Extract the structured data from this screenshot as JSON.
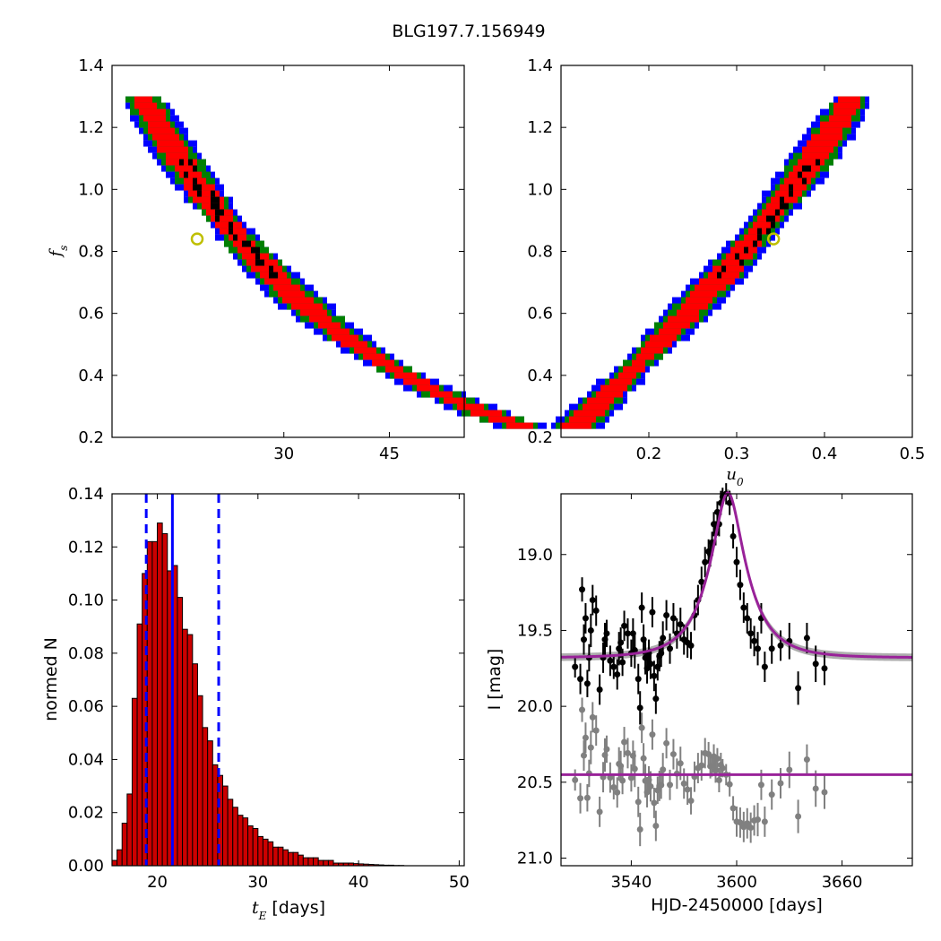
{
  "figure": {
    "title": "BLG197.7.156949"
  },
  "colors": {
    "blue": "#0000ff",
    "green": "#008000",
    "red": "#ff0000",
    "black": "#000000",
    "marker_edge": "#bfbf00",
    "model": "#992299",
    "model_band": "#999999",
    "gray_points": "#808080",
    "hist_bar": "#cc0000"
  },
  "chart_data": [
    {
      "id": "fs_vs_tE",
      "type": "heatmap",
      "description_levels": [
        "1-sigma (black)",
        "2-sigma (red)",
        "3-sigma (green)",
        "outer (blue)"
      ],
      "ylabel": "f_s",
      "xlabel": "",
      "x_scale": "log",
      "xlim": [
        15.5,
        60
      ],
      "ylim": [
        0.2,
        1.4
      ],
      "xticks": [
        30,
        45
      ],
      "yticks": [
        0.2,
        0.4,
        0.6,
        0.8,
        1.0,
        1.2,
        1.4
      ],
      "ytick_labels": [
        "0.2",
        "0.4",
        "0.6",
        "0.8",
        "1.0",
        "1.2",
        "1.4"
      ],
      "best_fit": {
        "tE": 21.5,
        "fs": 0.84
      },
      "curve": {
        "model": "tE = 22.0 * fs^-0.87",
        "fs_range": [
          0.24,
          1.3
        ]
      }
    },
    {
      "id": "fs_vs_u0",
      "type": "heatmap",
      "xlabel": "u_0",
      "ylabel": "",
      "xlim": [
        0.1,
        0.5
      ],
      "ylim": [
        0.2,
        1.4
      ],
      "xticks": [
        0.2,
        0.3,
        0.4,
        0.5
      ],
      "xtick_labels": [
        "0.2",
        "0.3",
        "0.4",
        "0.5"
      ],
      "yticks": [
        0.2,
        0.4,
        0.6,
        0.8,
        1.0,
        1.2,
        1.4
      ],
      "ytick_labels": [
        "0.2",
        "0.4",
        "0.6",
        "0.8",
        "1.0",
        "1.2",
        "1.4"
      ],
      "best_fit": {
        "u0": 0.342,
        "fs": 0.84
      },
      "curve": {
        "model": "u0 = 0.115 + 0.27*(fs-0.24)",
        "fs_range": [
          0.24,
          1.3
        ]
      }
    },
    {
      "id": "tE_histogram",
      "type": "bar",
      "xlabel": "t_E [days]",
      "ylabel": "normed N",
      "xlim": [
        15.5,
        50.5
      ],
      "ylim": [
        0,
        0.14
      ],
      "xticks": [
        20,
        30,
        40,
        50
      ],
      "xtick_labels": [
        "20",
        "30",
        "40",
        "50"
      ],
      "yticks": [
        0,
        0.02,
        0.04,
        0.06,
        0.08,
        0.1,
        0.12,
        0.14
      ],
      "ytick_labels": [
        "0.00",
        "0.02",
        "0.04",
        "0.06",
        "0.08",
        "0.10",
        "0.12",
        "0.14"
      ],
      "bin_start": 15.5,
      "bin_width": 0.5,
      "values": [
        0.002,
        0.006,
        0.016,
        0.027,
        0.063,
        0.091,
        0.11,
        0.122,
        0.122,
        0.129,
        0.125,
        0.111,
        0.113,
        0.101,
        0.089,
        0.087,
        0.076,
        0.064,
        0.052,
        0.047,
        0.038,
        0.034,
        0.03,
        0.025,
        0.022,
        0.019,
        0.018,
        0.015,
        0.014,
        0.011,
        0.01,
        0.009,
        0.007,
        0.007,
        0.006,
        0.005,
        0.005,
        0.004,
        0.003,
        0.003,
        0.003,
        0.002,
        0.002,
        0.002,
        0.001,
        0.001,
        0.001,
        0.001,
        0.0008,
        0.0007,
        0.0006,
        0.0005,
        0.0004,
        0.0003,
        0.0002,
        0.0002,
        0.0001,
        0.0001
      ],
      "vlines": [
        {
          "x": 21.5,
          "style": "solid"
        },
        {
          "x": 18.9,
          "style": "dashed"
        },
        {
          "x": 26.1,
          "style": "dashed"
        }
      ]
    },
    {
      "id": "lightcurve",
      "type": "scatter",
      "xlabel": "HJD-2450000 [days]",
      "ylabel": "I [mag]",
      "xlim": [
        3500,
        3700
      ],
      "ylim": [
        21.05,
        18.6
      ],
      "y_inverted": true,
      "xticks": [
        3540,
        3600,
        3660
      ],
      "xtick_labels": [
        "3540",
        "3600",
        "3660"
      ],
      "yticks": [
        19.0,
        19.5,
        20.0,
        20.5,
        21.0
      ],
      "ytick_labels": [
        "19.0",
        "19.5",
        "20.0",
        "20.5",
        "21.0"
      ],
      "model": {
        "t0": 3595,
        "tE": 21.5,
        "u0": 0.342,
        "fs": 0.84,
        "I_base": 19.68
      },
      "residual_baseline": 20.45,
      "series": [
        {
          "role": "data",
          "points": [
            [
              3508,
              19.74,
              0.07
            ],
            [
              3511,
              19.82,
              0.1
            ],
            [
              3512,
              19.23,
              0.08
            ],
            [
              3513,
              19.56,
              0.1
            ],
            [
              3514,
              19.42,
              0.1
            ],
            [
              3515,
              19.85,
              0.09
            ],
            [
              3516,
              19.68,
              0.09
            ],
            [
              3517,
              19.5,
              0.11
            ],
            [
              3518,
              19.3,
              0.1
            ],
            [
              3520,
              19.37,
              0.1
            ],
            [
              3522,
              19.89,
              0.1
            ],
            [
              3524,
              19.68,
              0.1
            ],
            [
              3525,
              19.56,
              0.11
            ],
            [
              3526,
              19.52,
              0.09
            ],
            [
              3528,
              19.7,
              0.1
            ],
            [
              3530,
              19.74,
              0.08
            ],
            [
              3532,
              19.79,
              0.1
            ],
            [
              3533,
              19.62,
              0.11
            ],
            [
              3534,
              19.58,
              0.1
            ],
            [
              3535,
              19.71,
              0.09
            ],
            [
              3536,
              19.47,
              0.1
            ],
            [
              3538,
              19.52,
              0.1
            ],
            [
              3540,
              19.65,
              0.09
            ],
            [
              3541,
              19.52,
              0.1
            ],
            [
              3542,
              19.63,
              0.12
            ],
            [
              3544,
              19.82,
              0.1
            ],
            [
              3545,
              20.01,
              0.11
            ],
            [
              3546,
              19.35,
              0.1
            ],
            [
              3547,
              19.56,
              0.1
            ],
            [
              3548,
              19.68,
              0.11
            ],
            [
              3549,
              19.75,
              0.1
            ],
            [
              3550,
              19.65,
              0.09
            ],
            [
              3551,
              19.72,
              0.1
            ],
            [
              3552,
              19.38,
              0.1
            ],
            [
              3553,
              19.8,
              0.1
            ],
            [
              3554,
              19.95,
              0.1
            ],
            [
              3555,
              19.74,
              0.09
            ],
            [
              3556,
              19.67,
              0.1
            ],
            [
              3557,
              19.65,
              0.09
            ],
            [
              3558,
              19.55,
              0.11
            ],
            [
              3560,
              19.4,
              0.1
            ],
            [
              3562,
              19.62,
              0.1
            ],
            [
              3564,
              19.42,
              0.1
            ],
            [
              3566,
              19.52,
              0.1
            ],
            [
              3568,
              19.46,
              0.11
            ],
            [
              3570,
              19.56,
              0.1
            ],
            [
              3572,
              19.58,
              0.1
            ],
            [
              3574,
              19.6,
              0.09
            ],
            [
              3576,
              19.4,
              0.1
            ],
            [
              3578,
              19.3,
              0.1
            ],
            [
              3580,
              19.18,
              0.1
            ],
            [
              3582,
              19.05,
              0.1
            ],
            [
              3584,
              18.98,
              0.08
            ],
            [
              3585,
              19.0,
              0.08
            ],
            [
              3586,
              18.92,
              0.07
            ],
            [
              3587,
              18.8,
              0.08
            ],
            [
              3588,
              18.86,
              0.08
            ],
            [
              3589,
              18.72,
              0.07
            ],
            [
              3590,
              18.8,
              0.08
            ],
            [
              3591,
              18.66,
              0.08
            ],
            [
              3592,
              18.62,
              0.06
            ],
            [
              3594,
              18.6,
              0.07
            ],
            [
              3596,
              18.66,
              0.08
            ],
            [
              3598,
              18.88,
              0.08
            ],
            [
              3600,
              19.05,
              0.1
            ],
            [
              3602,
              19.2,
              0.1
            ],
            [
              3604,
              19.35,
              0.1
            ],
            [
              3606,
              19.42,
              0.1
            ],
            [
              3608,
              19.52,
              0.1
            ],
            [
              3610,
              19.57,
              0.1
            ],
            [
              3612,
              19.62,
              0.11
            ],
            [
              3614,
              19.42,
              0.1
            ],
            [
              3616,
              19.74,
              0.1
            ],
            [
              3620,
              19.62,
              0.1
            ],
            [
              3625,
              19.6,
              0.1
            ],
            [
              3630,
              19.57,
              0.12
            ],
            [
              3635,
              19.88,
              0.11
            ],
            [
              3640,
              19.55,
              0.1
            ],
            [
              3645,
              19.72,
              0.12
            ],
            [
              3650,
              19.75,
              0.11
            ]
          ]
        }
      ]
    }
  ]
}
